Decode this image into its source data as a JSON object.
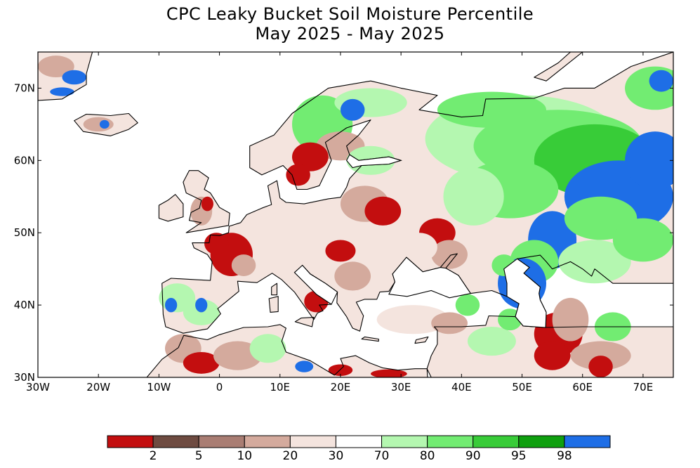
{
  "title": {
    "line1": "CPC Leaky Bucket Soil Moisture Percentile",
    "line2": "May 2025 - May 2025"
  },
  "map": {
    "projection": "equirectangular",
    "lon_range": [
      -30,
      75
    ],
    "lat_range": [
      30,
      75
    ],
    "lon_ticks": [
      {
        "value": -30,
        "label": "30W"
      },
      {
        "value": -20,
        "label": "20W"
      },
      {
        "value": -10,
        "label": "10W"
      },
      {
        "value": 0,
        "label": "0"
      },
      {
        "value": 10,
        "label": "10E"
      },
      {
        "value": 20,
        "label": "20E"
      },
      {
        "value": 30,
        "label": "30E"
      },
      {
        "value": 40,
        "label": "40E"
      },
      {
        "value": 50,
        "label": "50E"
      },
      {
        "value": 60,
        "label": "60E"
      },
      {
        "value": 70,
        "label": "70E"
      }
    ],
    "lat_ticks": [
      {
        "value": 30,
        "label": "30N"
      },
      {
        "value": 40,
        "label": "40N"
      },
      {
        "value": 50,
        "label": "50N"
      },
      {
        "value": 60,
        "label": "60N"
      },
      {
        "value": 70,
        "label": "70N"
      }
    ]
  },
  "legend": {
    "bins": [
      {
        "color": "#c30e0f"
      },
      {
        "color": "#6e4b41"
      },
      {
        "color": "#a97d73"
      },
      {
        "color": "#d4aa9d"
      },
      {
        "color": "#f4e4de"
      },
      {
        "color": "#ffffff"
      },
      {
        "color": "#b4f7b0"
      },
      {
        "color": "#72ec72"
      },
      {
        "color": "#38cc38"
      },
      {
        "color": "#0fa00f"
      },
      {
        "color": "#1e6ee6"
      }
    ],
    "labels": [
      "2",
      "5",
      "10",
      "20",
      "30",
      "70",
      "80",
      "90",
      "95",
      "98"
    ]
  },
  "colors": {
    "dry_extreme": "#c30e0f",
    "wet_extreme": "#1e6ee6",
    "ocean": "#ffffff",
    "coastline": "#000000"
  }
}
